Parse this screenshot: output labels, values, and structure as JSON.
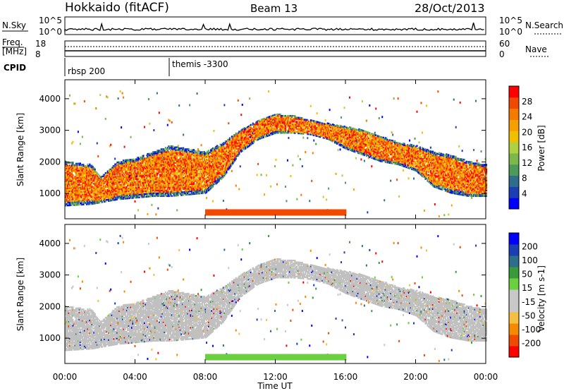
{
  "header": {
    "station": "Hokkaido (fitACF)",
    "beam": "Beam 13",
    "date": "28/Oct/2013"
  },
  "nsky_panel": {
    "left_label": "N.Sky",
    "left_tick_top": "10^5",
    "left_tick_bottom": "10^0",
    "right_tick_top": "10^5",
    "right_tick_bottom": "10^0",
    "right_label": "N.Search"
  },
  "freq_panel": {
    "left_label_1": "Freq.",
    "left_label_2": "[MHz]",
    "left_tick_top": "18",
    "left_tick_bottom": "8",
    "right_tick_top": "60",
    "right_tick_bottom": "0",
    "right_label": "Nave"
  },
  "cpid_panel": {
    "label": "CPID",
    "segments": [
      {
        "label": "rbsp 200",
        "start_hour": 0
      },
      {
        "label": "themis -3300",
        "start_hour": 6
      }
    ]
  },
  "axes": {
    "ylabel": "Slant Range [km]",
    "xlabel": "Time UT",
    "y_ticks": [
      "1000",
      "2000",
      "3000",
      "4000"
    ],
    "x_ticks": [
      "00:00",
      "04:00",
      "08:00",
      "12:00",
      "16:00",
      "20:00",
      "00:00"
    ]
  },
  "colors": {
    "power": [
      "#0000ff",
      "#1a3fb5",
      "#2e6e8a",
      "#4d9a5a",
      "#7ab84a",
      "#b0d040",
      "#f0c000",
      "#f5a000",
      "#f57a00",
      "#f04a00",
      "#ff0000"
    ],
    "velocity": [
      "#ff0000",
      "#f04a00",
      "#f58a00",
      "#f5c040",
      "#c8c8c8",
      "#c8c8c8",
      "#6ad040",
      "#3a9a3a",
      "#2e6e8a",
      "#1a3fb5",
      "#0000ff"
    ],
    "ground_scatter": "#c0c0c0"
  },
  "chart_data": [
    {
      "type": "heatmap",
      "name": "power",
      "ylabel": "Slant Range [km]",
      "xlabel": "",
      "xlim": [
        0,
        24
      ],
      "ylim": [
        200,
        4600
      ],
      "colorbar": {
        "label": "Power [dB]",
        "ticks": [
          "4",
          "8",
          "12",
          "16",
          "20",
          "24",
          "28"
        ],
        "range": [
          0,
          32
        ]
      },
      "bands": [
        {
          "x": [
            0.0,
            1.5,
            2.0,
            3.0,
            4.0,
            5.0,
            6.0,
            7.0,
            8.0,
            9.0,
            10.0,
            11.0,
            12.0,
            13.0,
            14.0,
            15.0,
            16.0,
            17.0,
            18.0,
            19.0,
            20.0,
            21.0,
            22.0,
            23.0,
            24.0
          ],
          "low": [
            600,
            650,
            700,
            800,
            850,
            900,
            900,
            950,
            1000,
            1500,
            2300,
            2700,
            2900,
            2900,
            2850,
            2700,
            2400,
            2200,
            2000,
            1900,
            1700,
            1200,
            1000,
            900,
            900
          ],
          "high": [
            2000,
            1900,
            1500,
            2000,
            2100,
            2300,
            2500,
            2400,
            2300,
            2600,
            3000,
            3300,
            3500,
            3450,
            3300,
            3200,
            3100,
            3000,
            2800,
            2600,
            2500,
            2300,
            2200,
            2000,
            1900
          ],
          "level": 27
        }
      ]
    },
    {
      "type": "heatmap",
      "name": "velocity",
      "ylabel": "Slant Range [km]",
      "xlabel": "Time UT",
      "xlim": [
        0,
        24
      ],
      "ylim": [
        200,
        4600
      ],
      "colorbar": {
        "label": "Velocity [m s-1]",
        "ticks": [
          "200",
          "100",
          "50",
          "15",
          "-15",
          "-50",
          "-100",
          "-200"
        ],
        "range": [
          -250,
          250
        ]
      },
      "bands": [
        {
          "x": [
            0.0,
            1.5,
            2.0,
            3.0,
            4.0,
            5.0,
            6.0,
            7.0,
            8.0,
            9.0,
            10.0,
            11.0,
            12.0,
            13.0,
            14.0,
            15.0,
            16.0,
            17.0,
            18.0,
            19.0,
            20.0,
            21.0,
            22.0,
            23.0,
            24.0
          ],
          "low": [
            600,
            650,
            700,
            800,
            850,
            900,
            900,
            950,
            1000,
            1500,
            2300,
            2700,
            2900,
            2900,
            2850,
            2700,
            2400,
            2200,
            2000,
            1900,
            1700,
            1200,
            1000,
            900,
            900
          ],
          "high": [
            2000,
            1900,
            1500,
            2000,
            2100,
            2300,
            2500,
            2400,
            2300,
            2600,
            3000,
            3300,
            3500,
            3450,
            3300,
            3200,
            3100,
            3000,
            2800,
            2600,
            2500,
            2300,
            2200,
            2000,
            1900
          ],
          "level": 0
        }
      ]
    }
  ]
}
